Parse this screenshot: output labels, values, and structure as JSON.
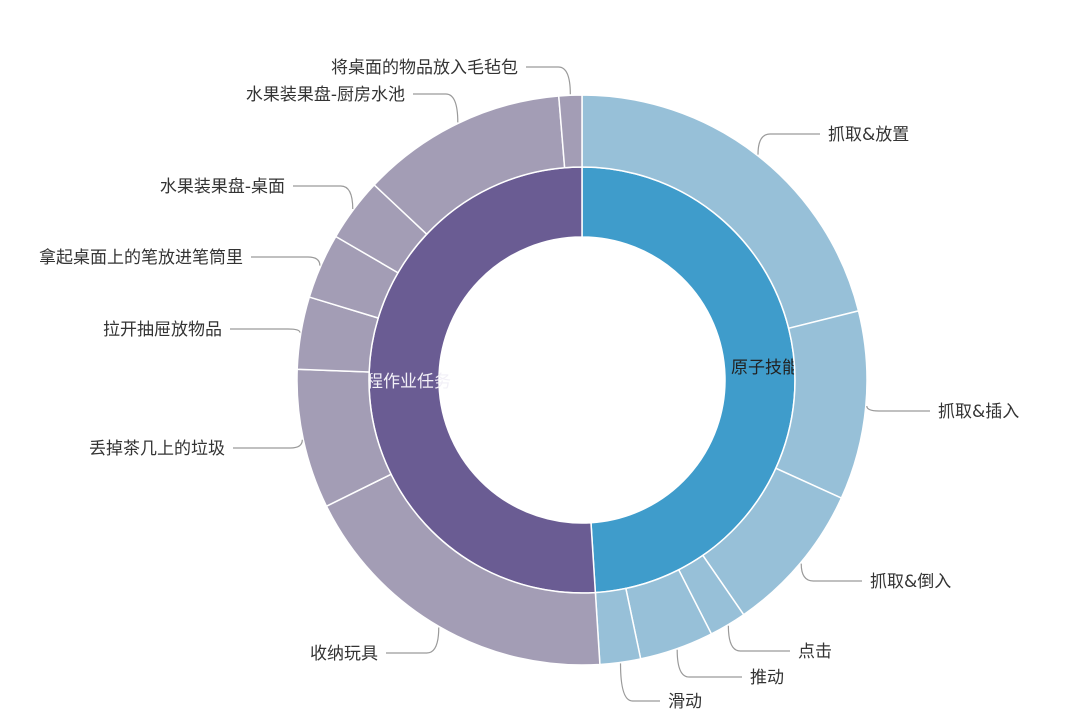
{
  "chart_data": {
    "type": "pie",
    "subtype": "nested-donut",
    "unit": "percent of total (estimated from arc angles)",
    "inner": [
      {
        "name": "原子技能",
        "value": 49.0,
        "color": "#3f9ccb"
      },
      {
        "name": "长程作业任务",
        "value": 51.0,
        "color": "#6a5c93"
      }
    ],
    "outer": [
      {
        "name": "抓取&放置",
        "parent": "原子技能",
        "value": 21.1,
        "color": "#97c0d8"
      },
      {
        "name": "抓取&插入",
        "parent": "原子技能",
        "value": 10.7,
        "color": "#97c0d8"
      },
      {
        "name": "抓取&倒入",
        "parent": "原子技能",
        "value": 8.6,
        "color": "#97c0d8"
      },
      {
        "name": "点击",
        "parent": "原子技能",
        "value": 2.1,
        "color": "#97c0d8"
      },
      {
        "name": "推动",
        "parent": "原子技能",
        "value": 4.2,
        "color": "#97c0d8"
      },
      {
        "name": "滑动",
        "parent": "原子技能",
        "value": 2.3,
        "color": "#97c0d8"
      },
      {
        "name": "收纳玩具",
        "parent": "长程作业任务",
        "value": 18.7,
        "color": "#a39db5"
      },
      {
        "name": "丢掉茶几上的垃圾",
        "parent": "长程作业任务",
        "value": 7.9,
        "color": "#a39db5"
      },
      {
        "name": "拉开抽屉放物品",
        "parent": "长程作业任务",
        "value": 4.1,
        "color": "#a39db5"
      },
      {
        "name": "拿起桌面上的笔放进笔筒里",
        "parent": "长程作业任务",
        "value": 3.7,
        "color": "#a39db5"
      },
      {
        "name": "水果装果盘-桌面",
        "parent": "长程作业任务",
        "value": 3.6,
        "color": "#a39db5"
      },
      {
        "name": "水果装果盘-厨房水池",
        "parent": "长程作业任务",
        "value": 11.7,
        "color": "#a39db5"
      },
      {
        "name": "将桌面的物品放入毛毡包",
        "parent": "长程作业任务",
        "value": 1.3,
        "color": "#a39db5"
      }
    ],
    "legend": "none",
    "start_angle": "top, clockwise"
  }
}
